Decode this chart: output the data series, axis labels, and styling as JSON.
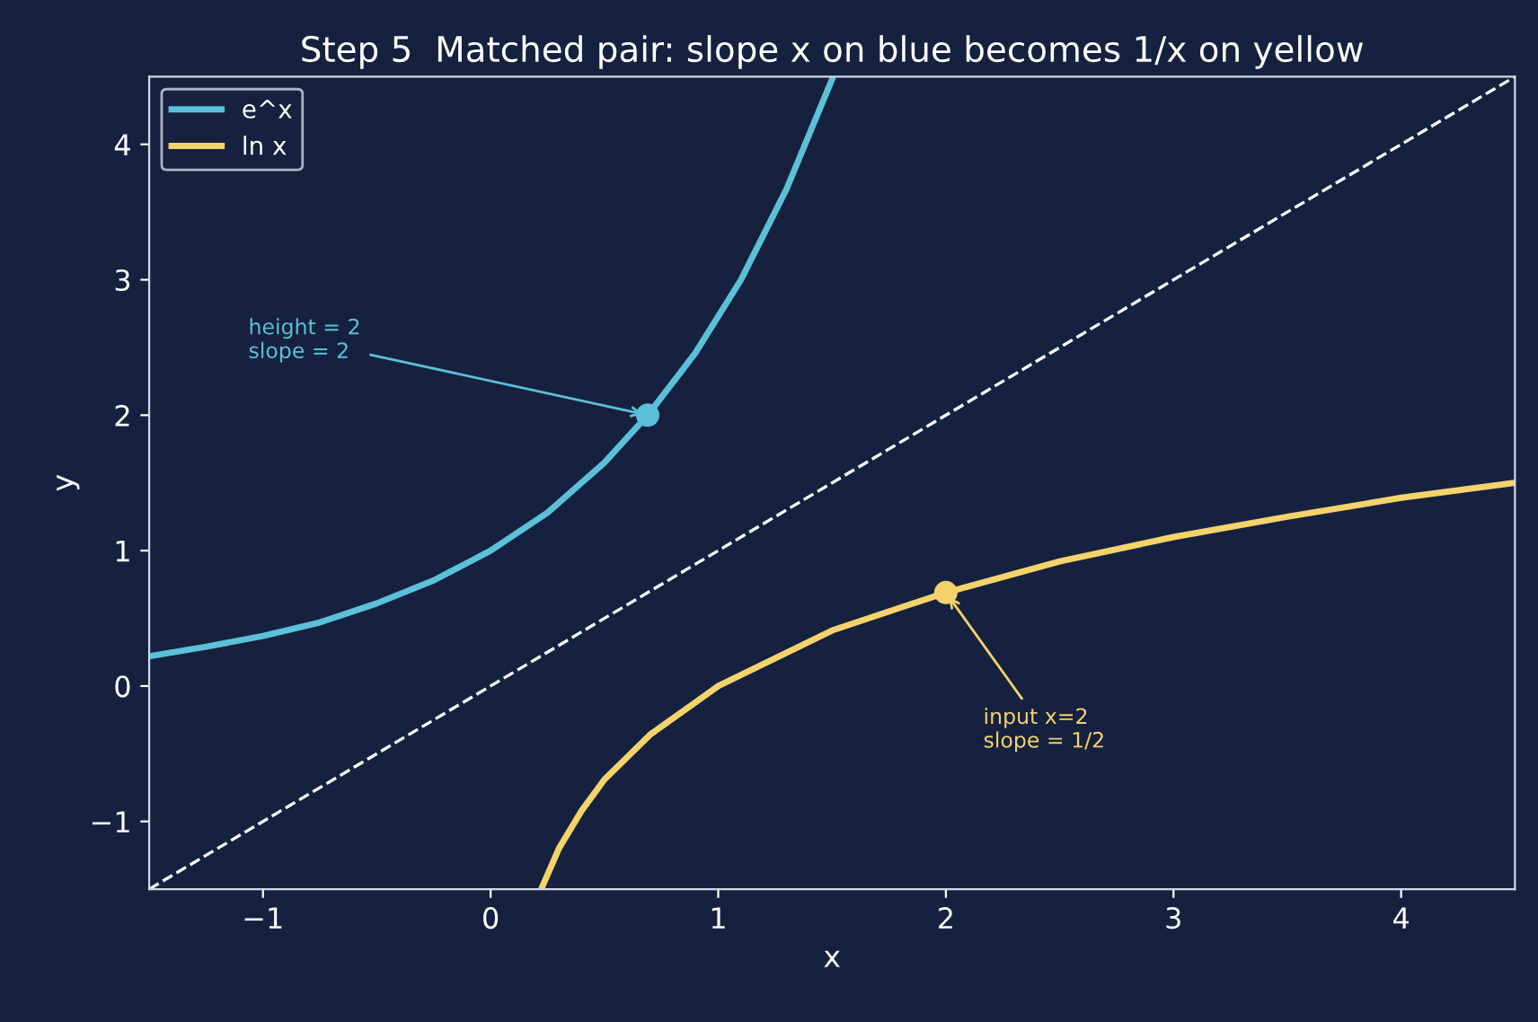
{
  "chart_data": {
    "type": "line",
    "title": "Step 5  Matched pair: slope x on blue becomes 1/x on yellow",
    "xlabel": "x",
    "ylabel": "y",
    "xlim": [
      -1.5,
      4.5
    ],
    "ylim": [
      -1.5,
      4.5
    ],
    "xticks": [
      {
        "value": -1,
        "label": "−1"
      },
      0,
      1,
      2,
      3,
      4
    ],
    "yticks": [
      {
        "value": -1,
        "label": "−1"
      },
      0,
      1,
      2,
      3,
      4
    ],
    "grid": false,
    "legend": "top left",
    "marker": "none",
    "series": [
      {
        "name": "e^x",
        "color": "#5bc0d8",
        "x": [
          -1.5,
          -1.25,
          -1,
          -0.75,
          -0.5,
          -0.25,
          0,
          0.25,
          0.5,
          0.69,
          0.9,
          1.1,
          1.3,
          1.5
        ],
        "values": [
          0.22,
          0.29,
          0.37,
          0.47,
          0.61,
          0.78,
          1,
          1.28,
          1.65,
          2,
          2.46,
          3.0,
          3.67,
          4.48
        ]
      },
      {
        "name": "ln x",
        "color": "#f5d36b",
        "x": [
          0.225,
          0.3,
          0.4,
          0.5,
          0.7,
          1,
          1.5,
          2,
          2.5,
          3,
          3.5,
          4,
          4.5
        ],
        "values": [
          -1.49,
          -1.2,
          -0.92,
          -0.69,
          -0.36,
          0,
          0.41,
          0.69,
          0.92,
          1.1,
          1.25,
          1.39,
          1.5
        ]
      },
      {
        "type": "line",
        "color": "#ffffff",
        "line_style": "dashed",
        "x": [
          -1.5,
          4.5
        ],
        "values": [
          -1.5,
          4.5
        ]
      },
      {
        "type": "scatter",
        "color": "#5bc0d8",
        "marker": "circle",
        "x": [
          0.69
        ],
        "values": [
          2
        ]
      },
      {
        "type": "scatter",
        "color": "#f5d36b",
        "marker": "circle",
        "x": [
          2
        ],
        "values": [
          0.69
        ]
      }
    ],
    "annotations": [
      {
        "text": "height = 2\nslope = 2",
        "x": 0.69,
        "y": 2
      },
      {
        "text": "input x=2\nslope = 1/2",
        "x": 2,
        "y": 0.69
      }
    ]
  }
}
